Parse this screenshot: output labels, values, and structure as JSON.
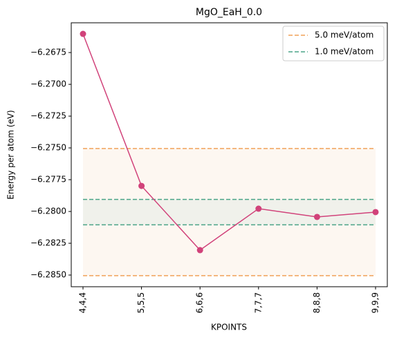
{
  "chart_data": {
    "type": "line",
    "title": "MgO_EaH_0.0",
    "xlabel": "KPOINTS",
    "ylabel": "Energy per atom (eV)",
    "categories": [
      "4,4,4",
      "5,5,5",
      "6,6,6",
      "7,7,7",
      "8,8,8",
      "9,9,9"
    ],
    "series": [
      {
        "name": "",
        "color": "#d1427a",
        "values": [
          -6.26603,
          -6.27799,
          -6.28304,
          -6.27978,
          -6.28043,
          -6.28005
        ]
      }
    ],
    "bands": [
      {
        "name": "5.0 meV/atom",
        "color": "#f0a057",
        "fill": "#fdf6ef",
        "values": [
          -6.27505,
          -6.28505
        ]
      },
      {
        "name": "1.0 meV/atom",
        "color": "#4aa487",
        "fill": "#eef0ea",
        "values": [
          -6.27905,
          -6.28105
        ]
      }
    ],
    "ylim": [
      -6.28592,
      -6.26516
    ],
    "yticks": [
      {
        "value": -6.2675,
        "label": "−6.2675"
      },
      {
        "value": -6.27,
        "label": "−6.2700"
      },
      {
        "value": -6.2725,
        "label": "−6.2725"
      },
      {
        "value": -6.275,
        "label": "−6.2750"
      },
      {
        "value": -6.2775,
        "label": "−6.2775"
      },
      {
        "value": -6.28,
        "label": "−6.2800"
      },
      {
        "value": -6.2825,
        "label": "−6.2825"
      },
      {
        "value": -6.285,
        "label": "−6.2850"
      }
    ],
    "legend": "upper right"
  }
}
